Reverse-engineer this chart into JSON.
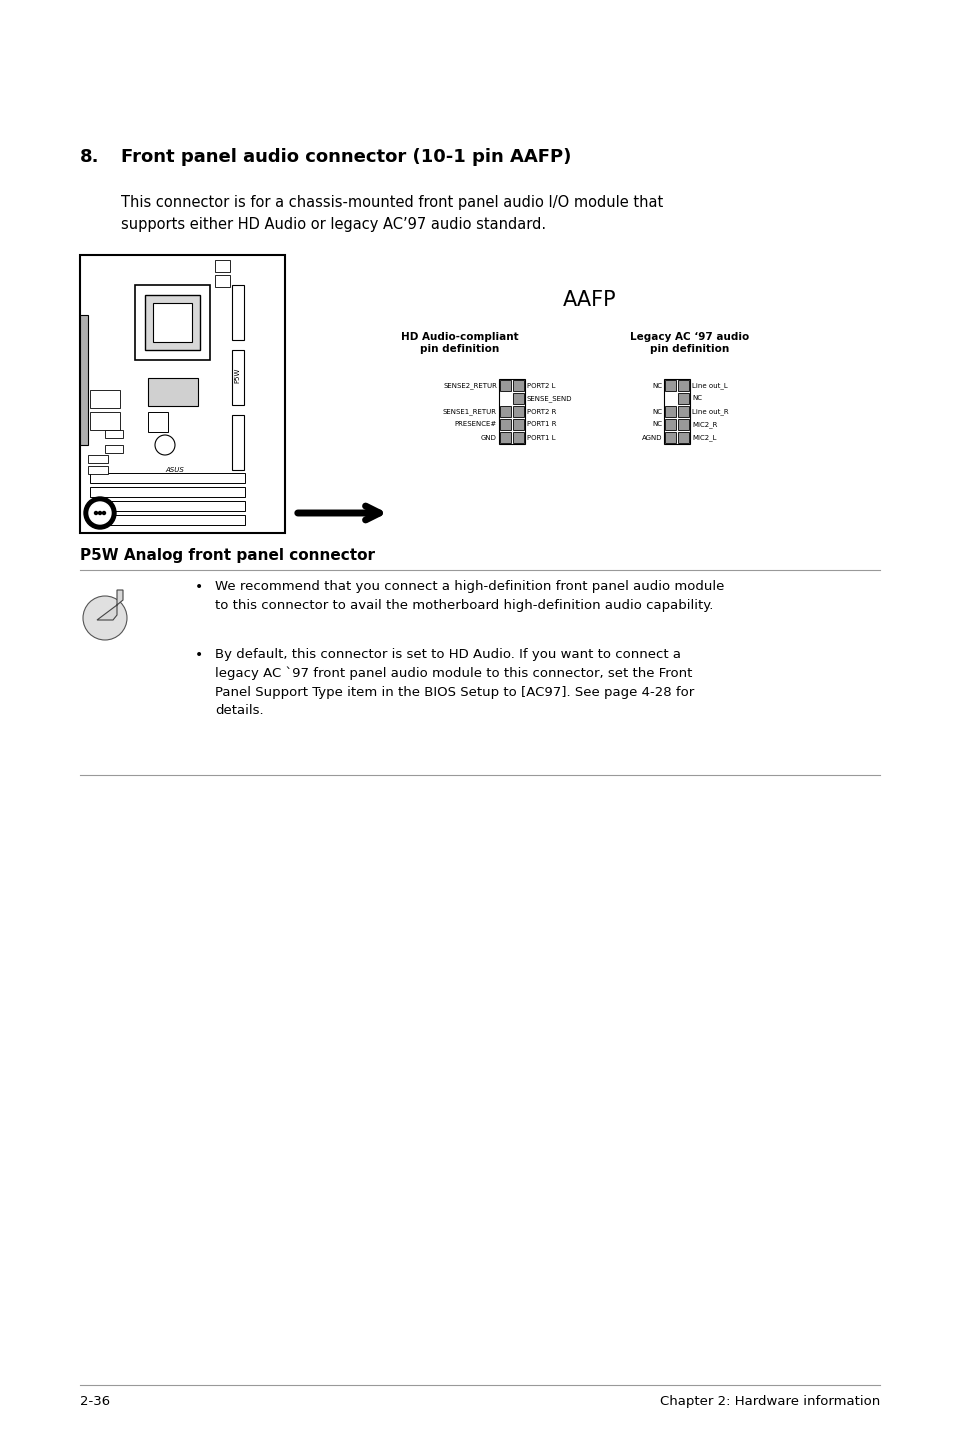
{
  "bg_color": "#ffffff",
  "section_number": "8.",
  "section_title": "Front panel audio connector (10-1 pin AAFP)",
  "body_text": "This connector is for a chassis-mounted front panel audio I/O module that\nsupports either HD Audio or legacy AC’97 audio standard.",
  "aafp_label": "AAFP",
  "hd_header1": "HD Audio-compliant",
  "hd_header2": "pin definition",
  "legacy_header1": "Legacy AC ‘97 audio",
  "legacy_header2": "pin definition",
  "caption": "P5W Analog front panel connector",
  "note1_text": "We recommend that you connect a high-definition front panel audio module\nto this connector to avail the motherboard high-definition audio capability.",
  "note2_text": "By default, this connector is set to HD Audio. If you want to connect a\nlegacy AC `97 front panel audio module to this connector, set the Front\nPanel Support Type item in the BIOS Setup to [AC97]. See page 4-28 for\ndetails.",
  "footer_left": "2-36",
  "footer_right": "Chapter 2: Hardware information",
  "hd_pins": [
    [
      "SENSE2_RETUR",
      "PORT2 L"
    ],
    [
      "",
      "SENSE_SEND"
    ],
    [
      "SENSE1_RETUR",
      "PORT2 R"
    ],
    [
      "PRESENCE#",
      "PORT1 R"
    ],
    [
      "GND",
      "PORT1 L"
    ]
  ],
  "legacy_pins": [
    [
      "NC",
      "Line out_L"
    ],
    [
      "",
      "NC"
    ],
    [
      "NC",
      "Line out_R"
    ],
    [
      "NC",
      "MIC2_R"
    ],
    [
      "AGND",
      "MIC2_L"
    ]
  ]
}
